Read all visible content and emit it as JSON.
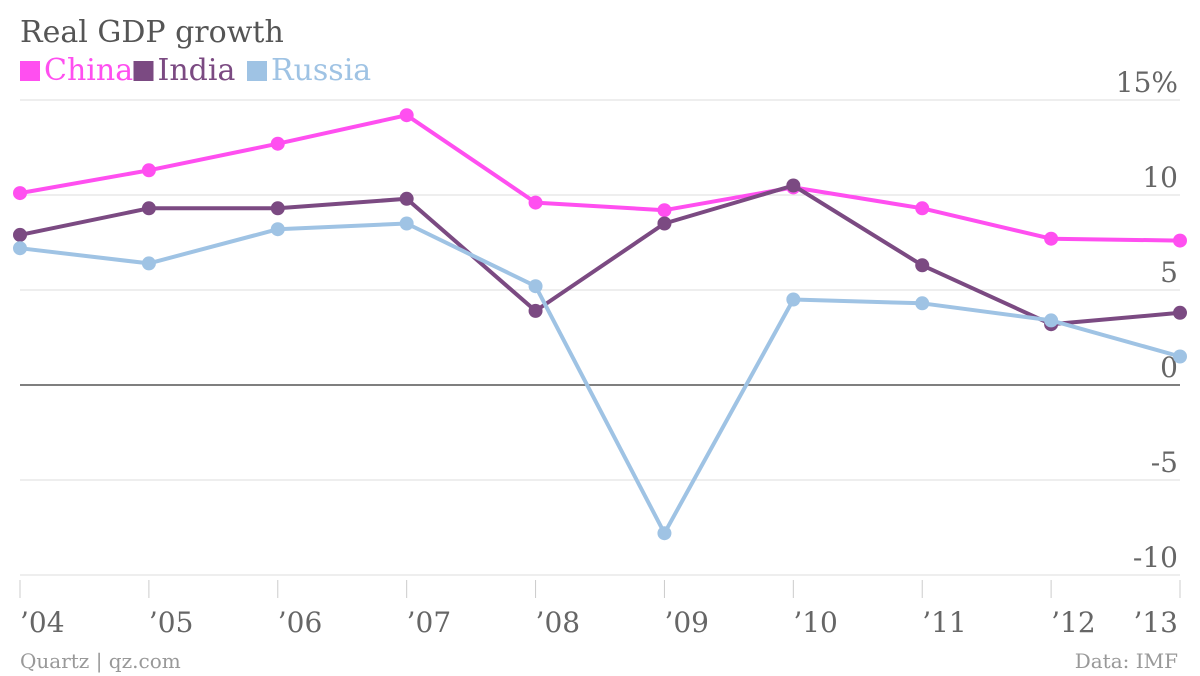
{
  "chart_data": {
    "type": "line",
    "title": "Real GDP growth",
    "x": [
      "’04",
      "’05",
      "’06",
      "’07",
      "’08",
      "’09",
      "’10",
      "’11",
      "’12",
      "’13"
    ],
    "y_ticks": [
      "15%",
      "10",
      "5",
      "0",
      "-5",
      "-10"
    ],
    "y_tick_values": [
      15,
      10,
      5,
      0,
      -5,
      -10
    ],
    "ylim": [
      -10,
      15
    ],
    "grid": true,
    "legend_position": "top-left",
    "series": [
      {
        "name": "China",
        "color": "#ff4ff0",
        "values": [
          10.1,
          11.3,
          12.7,
          14.2,
          9.6,
          9.2,
          10.4,
          9.3,
          7.7,
          7.6
        ]
      },
      {
        "name": "India",
        "color": "#7b4a82",
        "values": [
          7.9,
          9.3,
          9.3,
          9.8,
          3.9,
          8.5,
          10.5,
          6.3,
          3.2,
          3.8
        ]
      },
      {
        "name": "Russia",
        "color": "#9fc3e4",
        "values": [
          7.2,
          6.4,
          8.2,
          8.5,
          5.2,
          -7.8,
          4.5,
          4.3,
          3.4,
          1.5
        ]
      }
    ]
  },
  "footer": {
    "source_left": "Quartz | qz.com",
    "source_right": "Data: IMF"
  }
}
